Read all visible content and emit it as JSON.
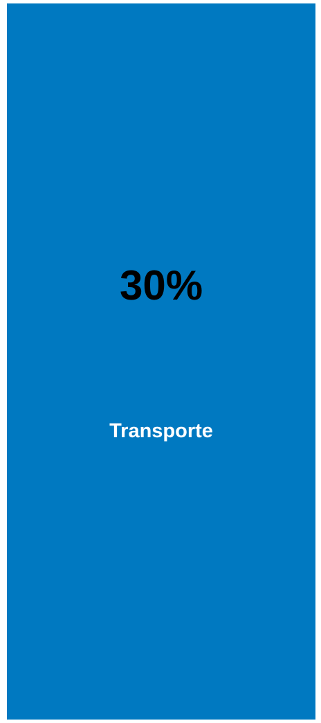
{
  "card": {
    "value": "30%",
    "label": "Transporte"
  }
}
